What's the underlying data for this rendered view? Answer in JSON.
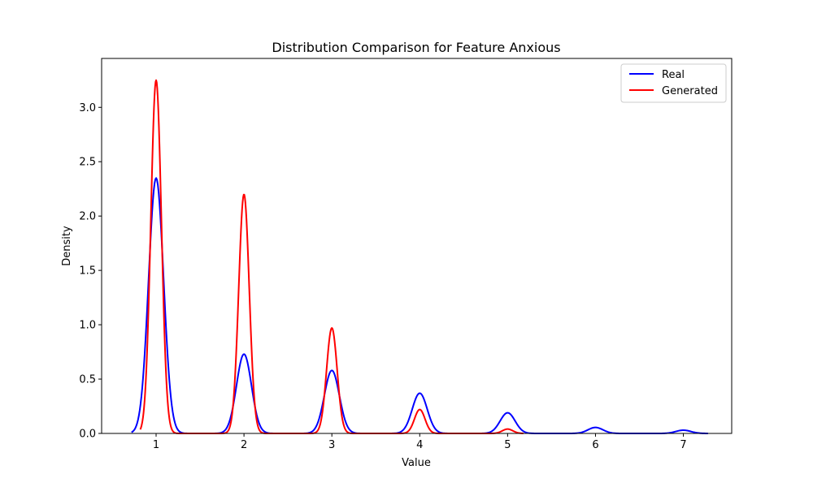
{
  "chart_data": {
    "type": "line",
    "title": "Distribution Comparison for Feature Anxious",
    "xlabel": "Value",
    "ylabel": "Density",
    "xlim": [
      0.38,
      7.55
    ],
    "ylim": [
      0,
      3.45
    ],
    "xticks": [
      1,
      2,
      3,
      4,
      5,
      6,
      7
    ],
    "yticks": [
      0.0,
      0.5,
      1.0,
      1.5,
      2.0,
      2.5,
      3.0
    ],
    "grid": false,
    "legend_position": "top-right",
    "series": [
      {
        "name": "Real",
        "color": "#0000ff",
        "x_range": [
          0.72,
          7.28
        ],
        "peaks": [
          {
            "x": 1,
            "height": 2.35,
            "sigma": 0.085
          },
          {
            "x": 2,
            "height": 0.73,
            "sigma": 0.085
          },
          {
            "x": 3,
            "height": 0.58,
            "sigma": 0.085
          },
          {
            "x": 4,
            "height": 0.37,
            "sigma": 0.085
          },
          {
            "x": 5,
            "height": 0.19,
            "sigma": 0.085
          },
          {
            "x": 6,
            "height": 0.055,
            "sigma": 0.085
          },
          {
            "x": 7,
            "height": 0.03,
            "sigma": 0.085
          }
        ]
      },
      {
        "name": "Generated",
        "color": "#ff0000",
        "x_range": [
          0.82,
          5.18
        ],
        "peaks": [
          {
            "x": 1,
            "height": 3.25,
            "sigma": 0.06
          },
          {
            "x": 2,
            "height": 2.2,
            "sigma": 0.06
          },
          {
            "x": 3,
            "height": 0.97,
            "sigma": 0.06
          },
          {
            "x": 4,
            "height": 0.22,
            "sigma": 0.06
          },
          {
            "x": 5,
            "height": 0.04,
            "sigma": 0.06
          }
        ]
      }
    ]
  }
}
